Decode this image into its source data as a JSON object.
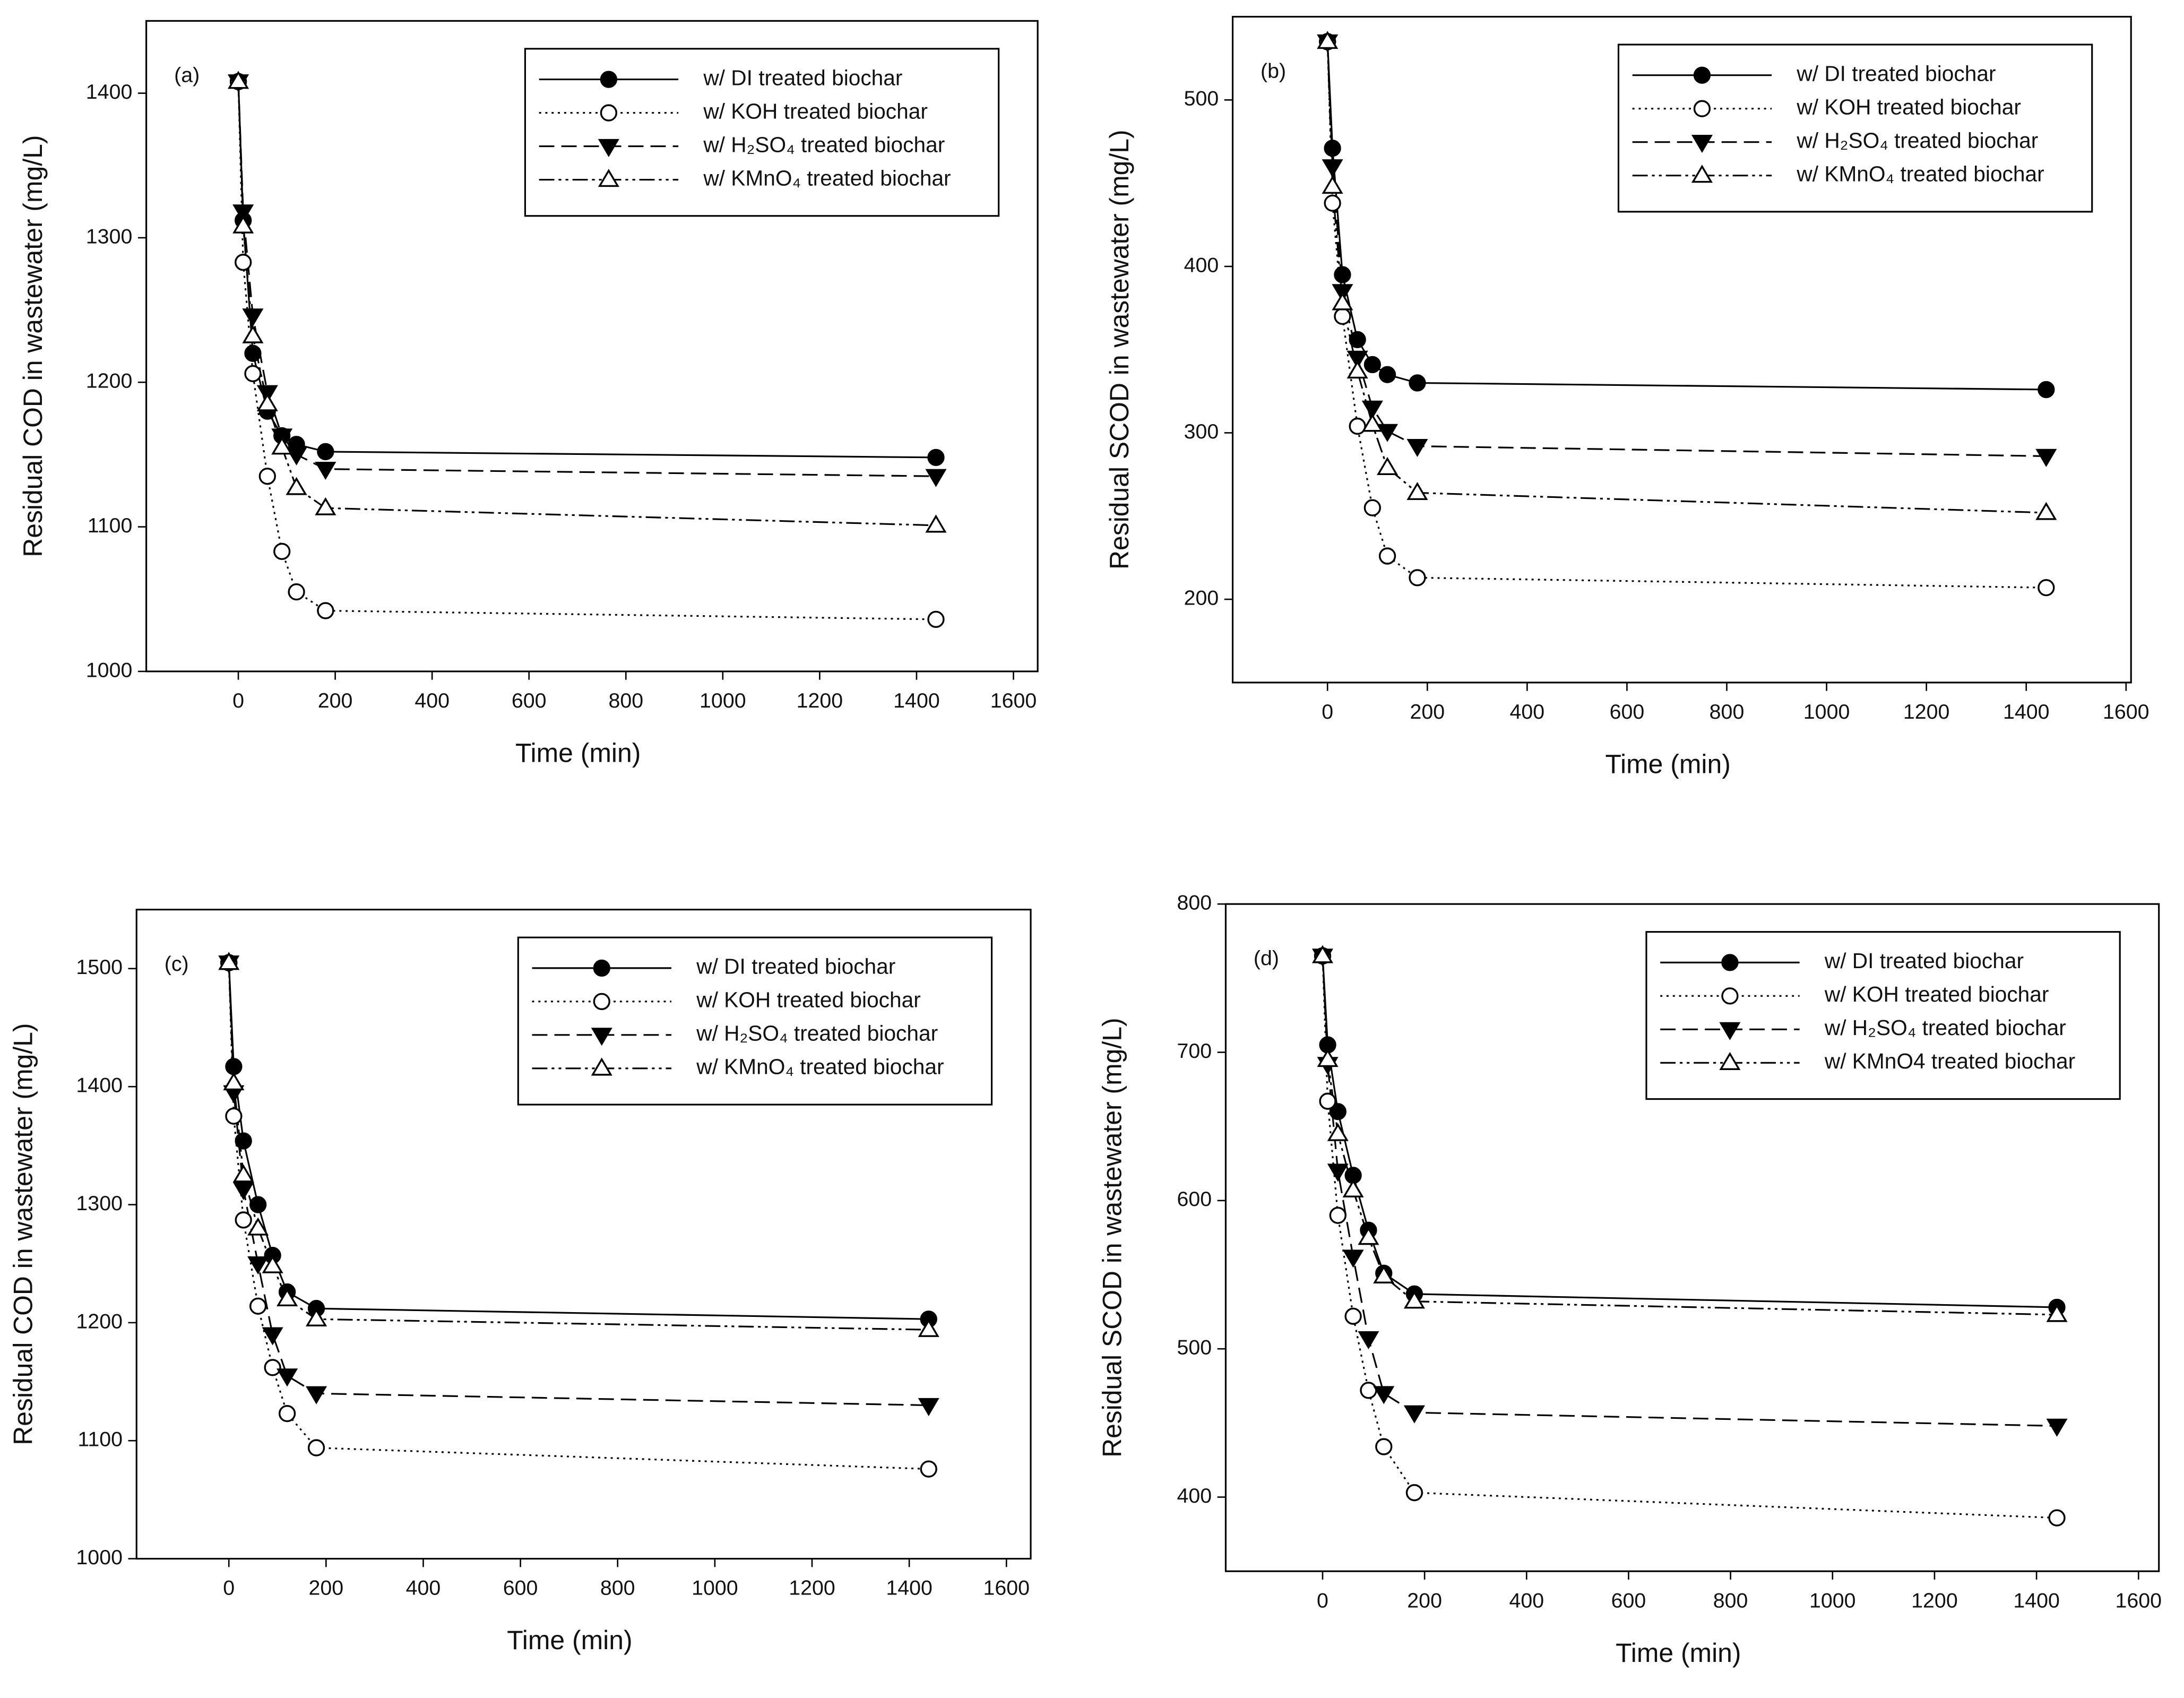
{
  "chart_data": [
    {
      "type": "line",
      "annotation": "(a)",
      "xlabel": "Time (min)",
      "ylabel": "Residual COD in wastewater (mg/L)",
      "x": [
        0,
        10,
        30,
        60,
        90,
        120,
        180,
        1440
      ],
      "xlim": [
        -190,
        1650
      ],
      "xticks": [
        0,
        200,
        400,
        600,
        800,
        1000,
        1200,
        1400,
        1600
      ],
      "ylim": [
        1000,
        1450
      ],
      "yticks": [
        1000,
        1100,
        1200,
        1300,
        1400
      ],
      "legend": "top-right",
      "series": [
        {
          "name": "w/ DI treated biochar",
          "color": "#000000",
          "marker": "filled-circle",
          "line_style": "solid",
          "values": [
            1408,
            1312,
            1220,
            1180,
            1163,
            1157,
            1152,
            1148
          ]
        },
        {
          "name": "w/ KOH treated biochar",
          "color": "#000000",
          "marker": "open-circle",
          "line_style": "dotted",
          "values": [
            1408,
            1283,
            1206,
            1135,
            1083,
            1055,
            1042,
            1036
          ]
        },
        {
          "name": "w/ H₂SO₄ treated biochar",
          "color": "#000000",
          "marker": "filled-triangle-down",
          "line_style": "dashed",
          "values": [
            1408,
            1318,
            1246,
            1193,
            1163,
            1150,
            1140,
            1135
          ]
        },
        {
          "name": "w/ KMnO₄ treated biochar",
          "color": "#000000",
          "marker": "open-triangle-up",
          "line_style": "dash-dot-dot",
          "values": [
            1408,
            1308,
            1232,
            1185,
            1155,
            1127,
            1113,
            1101
          ]
        }
      ]
    },
    {
      "type": "line",
      "annotation": "(b)",
      "xlabel": "Time (min)",
      "ylabel": "Residual SCOD in wastewater (mg/L)",
      "x": [
        0,
        10,
        30,
        60,
        90,
        120,
        180,
        1440
      ],
      "xlim": [
        -190,
        1610
      ],
      "xticks": [
        0,
        200,
        400,
        600,
        800,
        1000,
        1200,
        1400,
        1600
      ],
      "ylim": [
        150,
        550
      ],
      "yticks": [
        200,
        300,
        400,
        500
      ],
      "legend": "top-right",
      "series": [
        {
          "name": "w/ DI treated biochar",
          "color": "#000000",
          "marker": "filled-circle",
          "line_style": "solid",
          "values": [
            535,
            471,
            395,
            356,
            341,
            335,
            330,
            326
          ]
        },
        {
          "name": "w/ KOH treated biochar",
          "color": "#000000",
          "marker": "open-circle",
          "line_style": "dotted",
          "values": [
            535,
            438,
            370,
            304,
            255,
            226,
            213,
            207
          ]
        },
        {
          "name": "w/ H₂SO₄ treated biochar",
          "color": "#000000",
          "marker": "filled-triangle-down",
          "line_style": "dashed",
          "values": [
            535,
            460,
            385,
            345,
            315,
            301,
            292,
            286
          ]
        },
        {
          "name": "w/ KMnO₄ treated biochar",
          "color": "#000000",
          "marker": "open-triangle-up",
          "line_style": "dash-dot-dot",
          "values": [
            535,
            448,
            378,
            337,
            305,
            279,
            264,
            252
          ]
        }
      ]
    },
    {
      "type": "line",
      "annotation": "(c)",
      "xlabel": "Time (min)",
      "ylabel": "Residual COD in wastewater (mg/L)",
      "x": [
        0,
        10,
        30,
        60,
        90,
        120,
        180,
        1440
      ],
      "xlim": [
        -190,
        1650
      ],
      "xticks": [
        0,
        200,
        400,
        600,
        800,
        1000,
        1200,
        1400,
        1600
      ],
      "ylim": [
        1000,
        1550
      ],
      "yticks": [
        1000,
        1100,
        1200,
        1300,
        1400,
        1500
      ],
      "legend": "top-right",
      "series": [
        {
          "name": "w/ DI treated biochar",
          "color": "#000000",
          "marker": "filled-circle",
          "line_style": "solid",
          "values": [
            1505,
            1417,
            1354,
            1300,
            1257,
            1226,
            1212,
            1203
          ]
        },
        {
          "name": "w/ KOH treated biochar",
          "color": "#000000",
          "marker": "open-circle",
          "line_style": "dotted",
          "values": [
            1505,
            1375,
            1287,
            1214,
            1162,
            1123,
            1094,
            1076
          ]
        },
        {
          "name": "w/ H₂SO₄ treated biochar",
          "color": "#000000",
          "marker": "filled-triangle-down",
          "line_style": "dashed",
          "values": [
            1505,
            1395,
            1313,
            1250,
            1190,
            1155,
            1140,
            1130
          ]
        },
        {
          "name": "w/ KMnO₄ treated biochar",
          "color": "#000000",
          "marker": "open-triangle-up",
          "line_style": "dash-dot-dot",
          "values": [
            1505,
            1403,
            1325,
            1280,
            1248,
            1220,
            1203,
            1194
          ]
        }
      ]
    },
    {
      "type": "line",
      "annotation": "(d)",
      "xlabel": "Time (min)",
      "ylabel": "Residual SCOD in wastewater (mg/L)",
      "x": [
        0,
        10,
        30,
        60,
        90,
        120,
        180,
        1440
      ],
      "xlim": [
        -190,
        1640
      ],
      "xticks": [
        0,
        200,
        400,
        600,
        800,
        1000,
        1200,
        1400,
        1600
      ],
      "ylim": [
        350,
        800
      ],
      "yticks": [
        400,
        500,
        600,
        700,
        800
      ],
      "legend": "top-right",
      "series": [
        {
          "name": "w/ DI treated biochar",
          "color": "#000000",
          "marker": "filled-circle",
          "line_style": "solid",
          "values": [
            765,
            705,
            660,
            617,
            580,
            551,
            537,
            528
          ]
        },
        {
          "name": "w/ KOH treated biochar",
          "color": "#000000",
          "marker": "open-circle",
          "line_style": "dotted",
          "values": [
            765,
            667,
            590,
            522,
            472,
            434,
            403,
            386
          ]
        },
        {
          "name": "w/ H₂SO₄ treated biochar",
          "color": "#000000",
          "marker": "filled-triangle-down",
          "line_style": "dashed",
          "values": [
            765,
            692,
            620,
            562,
            507,
            470,
            457,
            448
          ]
        },
        {
          "name": "w/ KMnO4 treated biochar",
          "color": "#000000",
          "marker": "open-triangle-up",
          "line_style": "dash-dot-dot",
          "values": [
            765,
            695,
            645,
            607,
            575,
            549,
            532,
            523
          ]
        }
      ]
    }
  ]
}
